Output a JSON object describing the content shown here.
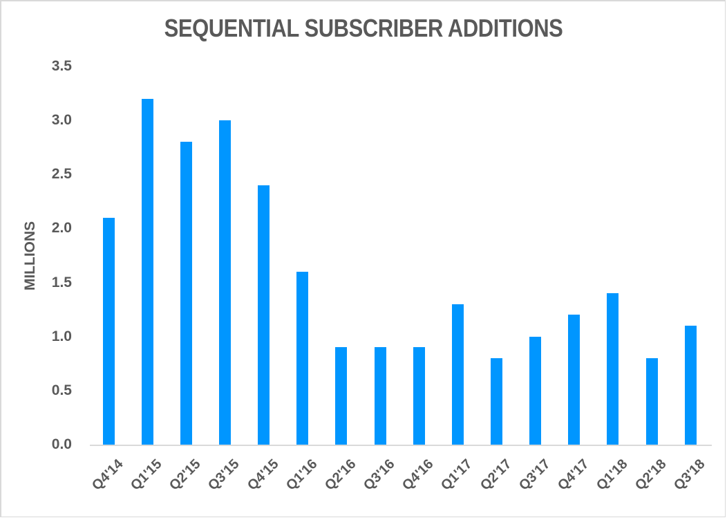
{
  "chart_data": {
    "type": "bar",
    "title": "SEQUENTIAL SUBSCRIBER ADDITIONS",
    "xlabel": "",
    "ylabel": "MILLIONS",
    "ylim": [
      0,
      3.5
    ],
    "yticks": [
      "0.0",
      "0.5",
      "1.0",
      "1.5",
      "2.0",
      "2.5",
      "3.0",
      "3.5"
    ],
    "grid": false,
    "legend": null,
    "bar_color": "#0096ff",
    "categories": [
      "Q4'14",
      "Q1'15",
      "Q2'15",
      "Q3'15",
      "Q4'15",
      "Q1'16",
      "Q2'16",
      "Q3'16",
      "Q4'16",
      "Q1'17",
      "Q2'17",
      "Q3'17",
      "Q4'17",
      "Q1'18",
      "Q2'18",
      "Q3'18"
    ],
    "values": [
      2.1,
      3.2,
      2.8,
      3.0,
      2.4,
      1.6,
      0.9,
      0.9,
      0.9,
      1.3,
      0.8,
      1.0,
      1.2,
      1.4,
      0.8,
      1.1
    ]
  }
}
